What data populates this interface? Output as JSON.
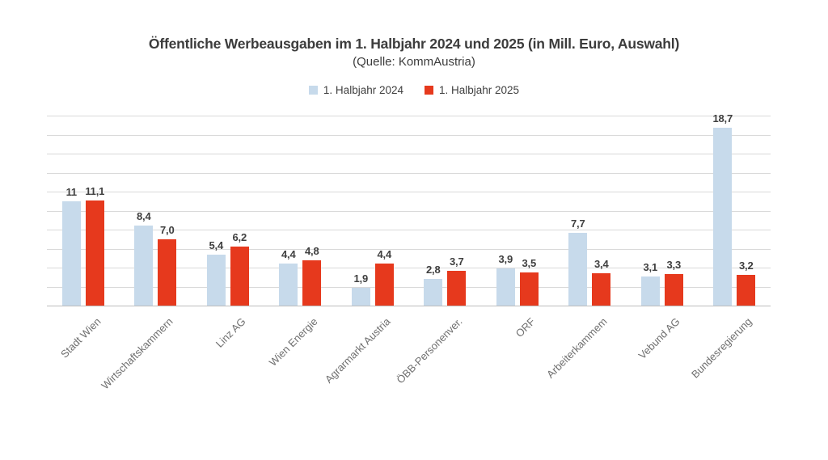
{
  "title": "Öffentliche Werbeausgaben im 1. Halbjahr 2024 und 2025 (in Mill. Euro, Auswahl)",
  "subtitle": "(Quelle: KommAustria)",
  "colors": {
    "series_2024": "#c7daeb",
    "series_2025": "#e6391d",
    "gridline": "#d9d9d9",
    "axis_line": "#bdbdbd",
    "value_text": "#3f3f3f",
    "category_text": "#6f6f6f",
    "background": "#ffffff"
  },
  "chart_data": {
    "type": "bar",
    "title": "Öffentliche Werbeausgaben im 1. Halbjahr 2024 und 2025 (in Mill. Euro, Auswahl)",
    "subtitle": "(Quelle: KommAustria)",
    "xlabel": "",
    "ylabel": "",
    "ylim": [
      0,
      20
    ],
    "gridline_step": 2,
    "grid": true,
    "legend_position": "top",
    "y_axis_labels_visible": false,
    "categories": [
      "Stadt Wien",
      "Wirtschaftskammern",
      "Linz AG",
      "Wien Energie",
      "Agrarmarkt Austria",
      "ÖBB-Personenver.",
      "ORF",
      "Arbeiterkammem",
      "Vebund AG",
      "Bundesregierung"
    ],
    "series": [
      {
        "name": "1. Halbjahr 2024",
        "color": "#c7daeb",
        "values": [
          11,
          8.4,
          5.4,
          4.4,
          1.9,
          2.8,
          3.9,
          7.7,
          3.1,
          18.7
        ],
        "labels": [
          "11",
          "8,4",
          "5,4",
          "4,4",
          "1,9",
          "2,8",
          "3,9",
          "7,7",
          "3,1",
          "18,7"
        ]
      },
      {
        "name": "1. Halbjahr 2025",
        "color": "#e6391d",
        "values": [
          11.1,
          7.0,
          6.2,
          4.8,
          4.4,
          3.7,
          3.5,
          3.4,
          3.3,
          3.2
        ],
        "labels": [
          "11,1",
          "7,0",
          "6,2",
          "4,8",
          "4,4",
          "3,7",
          "3,5",
          "3,4",
          "3,3",
          "3,2"
        ]
      }
    ]
  }
}
